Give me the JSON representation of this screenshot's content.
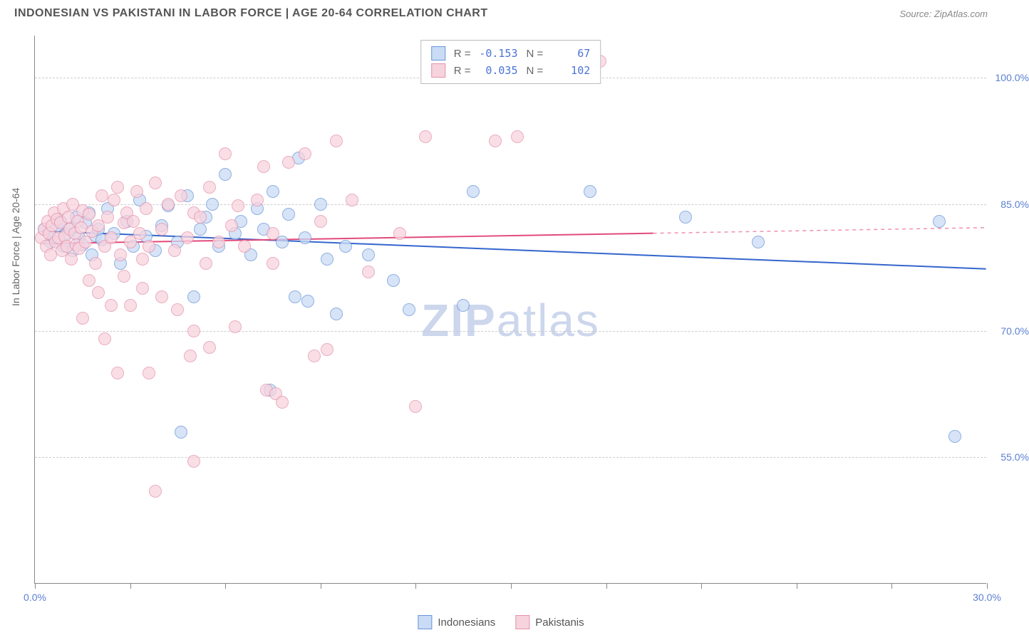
{
  "header": {
    "title": "INDONESIAN VS PAKISTANI IN LABOR FORCE | AGE 20-64 CORRELATION CHART",
    "source": "Source: ZipAtlas.com"
  },
  "watermark": {
    "bold": "ZIP",
    "light": "atlas"
  },
  "chart": {
    "type": "scatter",
    "ylabel": "In Labor Force | Age 20-64",
    "xlim": [
      0,
      30
    ],
    "ylim": [
      40,
      105
    ],
    "ytick_values": [
      55.0,
      70.0,
      85.0,
      100.0
    ],
    "ytick_labels": [
      "55.0%",
      "70.0%",
      "85.0%",
      "100.0%"
    ],
    "xtick_values": [
      0,
      3,
      6,
      9,
      12,
      15,
      18,
      21,
      24,
      27,
      30
    ],
    "xtick_show_labels": {
      "0": "0.0%",
      "30": "30.0%"
    },
    "background_color": "#ffffff",
    "grid_color": "#cccccc",
    "series": [
      {
        "name": "Indonesians",
        "fill_color": "#cadcf5",
        "stroke_color": "#6a95d8",
        "line_color": "#3366cc",
        "r_value": "-0.153",
        "n_value": "67",
        "trend": {
          "x1": 0.2,
          "y1": 81.8,
          "x2": 30,
          "y2": 77.3,
          "solid_until_x": 30
        },
        "points": [
          [
            0.3,
            82
          ],
          [
            0.5,
            80.5
          ],
          [
            0.6,
            81
          ],
          [
            0.7,
            82.5
          ],
          [
            0.8,
            83
          ],
          [
            0.9,
            80
          ],
          [
            1.0,
            81.5
          ],
          [
            1.1,
            82.2
          ],
          [
            1.2,
            79.5
          ],
          [
            1.3,
            83.5
          ],
          [
            1.4,
            81
          ],
          [
            1.5,
            80.2
          ],
          [
            1.6,
            82.8
          ],
          [
            1.7,
            84
          ],
          [
            1.8,
            79
          ],
          [
            1.9,
            81.3
          ],
          [
            2.0,
            82
          ],
          [
            2.1,
            80.8
          ],
          [
            2.3,
            84.5
          ],
          [
            2.5,
            81.5
          ],
          [
            2.7,
            78
          ],
          [
            2.9,
            83
          ],
          [
            3.1,
            80
          ],
          [
            3.3,
            85.5
          ],
          [
            3.5,
            81.2
          ],
          [
            3.8,
            79.5
          ],
          [
            4.0,
            82.5
          ],
          [
            4.2,
            84.8
          ],
          [
            4.5,
            80.5
          ],
          [
            4.8,
            86
          ],
          [
            5.0,
            74
          ],
          [
            5.2,
            82
          ],
          [
            5.4,
            83.5
          ],
          [
            5.6,
            85
          ],
          [
            5.8,
            80
          ],
          [
            6.0,
            88.5
          ],
          [
            6.3,
            81.5
          ],
          [
            6.5,
            83
          ],
          [
            6.8,
            79
          ],
          [
            7.0,
            84.5
          ],
          [
            7.2,
            82
          ],
          [
            7.5,
            86.5
          ],
          [
            7.8,
            80.5
          ],
          [
            8.0,
            83.8
          ],
          [
            8.3,
            90.5
          ],
          [
            8.5,
            81
          ],
          [
            9.0,
            85
          ],
          [
            8.2,
            74
          ],
          [
            8.6,
            73.5
          ],
          [
            9.2,
            78.5
          ],
          [
            9.8,
            80
          ],
          [
            10.5,
            79
          ],
          [
            9.5,
            72
          ],
          [
            7.4,
            63
          ],
          [
            4.6,
            58
          ],
          [
            11.3,
            76
          ],
          [
            11.8,
            72.5
          ],
          [
            13.5,
            73
          ],
          [
            13.8,
            86.5
          ],
          [
            17.5,
            86.5
          ],
          [
            20.5,
            83.5
          ],
          [
            22.8,
            80.5
          ],
          [
            28.5,
            83
          ],
          [
            29.0,
            57.5
          ]
        ]
      },
      {
        "name": "Pakistanis",
        "fill_color": "#f7d3de",
        "stroke_color": "#e593ac",
        "line_color": "#e24a7a",
        "r_value": "0.035",
        "n_value": "102",
        "trend": {
          "x1": 0.2,
          "y1": 80.3,
          "x2": 30,
          "y2": 82.2,
          "solid_until_x": 19.5
        },
        "points": [
          [
            0.2,
            81
          ],
          [
            0.3,
            82
          ],
          [
            0.35,
            80
          ],
          [
            0.4,
            83
          ],
          [
            0.45,
            81.5
          ],
          [
            0.5,
            79
          ],
          [
            0.55,
            82.5
          ],
          [
            0.6,
            84
          ],
          [
            0.65,
            80.5
          ],
          [
            0.7,
            83.2
          ],
          [
            0.75,
            81
          ],
          [
            0.8,
            82.8
          ],
          [
            0.85,
            79.5
          ],
          [
            0.9,
            84.5
          ],
          [
            0.95,
            81.2
          ],
          [
            1.0,
            80
          ],
          [
            1.05,
            83.5
          ],
          [
            1.1,
            82
          ],
          [
            1.15,
            78.5
          ],
          [
            1.2,
            85
          ],
          [
            1.25,
            81.5
          ],
          [
            1.3,
            80.2
          ],
          [
            1.35,
            83
          ],
          [
            1.4,
            79.8
          ],
          [
            1.45,
            82.2
          ],
          [
            1.5,
            84.2
          ],
          [
            1.6,
            80.5
          ],
          [
            1.7,
            83.8
          ],
          [
            1.8,
            81.8
          ],
          [
            1.9,
            78
          ],
          [
            2.0,
            82.5
          ],
          [
            2.1,
            86
          ],
          [
            2.2,
            80
          ],
          [
            2.3,
            83.5
          ],
          [
            2.4,
            81
          ],
          [
            2.5,
            85.5
          ],
          [
            2.6,
            87
          ],
          [
            2.7,
            79
          ],
          [
            2.8,
            82.8
          ],
          [
            2.9,
            84
          ],
          [
            3.0,
            80.5
          ],
          [
            3.1,
            83
          ],
          [
            3.2,
            86.5
          ],
          [
            3.3,
            81.5
          ],
          [
            3.4,
            78.5
          ],
          [
            3.5,
            84.5
          ],
          [
            3.6,
            80
          ],
          [
            3.8,
            87.5
          ],
          [
            4.0,
            82
          ],
          [
            4.2,
            85
          ],
          [
            4.4,
            79.5
          ],
          [
            4.6,
            86
          ],
          [
            4.8,
            81
          ],
          [
            5.0,
            84
          ],
          [
            5.2,
            83.5
          ],
          [
            5.4,
            78
          ],
          [
            5.5,
            87
          ],
          [
            5.8,
            80.5
          ],
          [
            6.0,
            91
          ],
          [
            6.2,
            82.5
          ],
          [
            6.4,
            84.8
          ],
          [
            6.6,
            80
          ],
          [
            7.0,
            85.5
          ],
          [
            7.2,
            89.5
          ],
          [
            7.5,
            81.5
          ],
          [
            8.0,
            90
          ],
          [
            8.5,
            91
          ],
          [
            9.0,
            83
          ],
          [
            9.5,
            92.5
          ],
          [
            10.0,
            85.5
          ],
          [
            10.5,
            77
          ],
          [
            1.7,
            76
          ],
          [
            2.0,
            74.5
          ],
          [
            2.4,
            73
          ],
          [
            2.8,
            76.5
          ],
          [
            3.0,
            73
          ],
          [
            3.4,
            75
          ],
          [
            4.0,
            74
          ],
          [
            4.5,
            72.5
          ],
          [
            5.0,
            70
          ],
          [
            5.5,
            68
          ],
          [
            6.3,
            70.5
          ],
          [
            7.5,
            78
          ],
          [
            1.5,
            71.5
          ],
          [
            2.2,
            69
          ],
          [
            3.6,
            65
          ],
          [
            4.9,
            67
          ],
          [
            7.3,
            63
          ],
          [
            7.6,
            62.5
          ],
          [
            7.8,
            61.5
          ],
          [
            8.8,
            67
          ],
          [
            9.2,
            67.8
          ],
          [
            5.0,
            54.5
          ],
          [
            3.8,
            51
          ],
          [
            2.6,
            65
          ],
          [
            12.0,
            61
          ],
          [
            12.3,
            93
          ],
          [
            14.5,
            92.5
          ],
          [
            17.8,
            102
          ],
          [
            11.5,
            81.5
          ],
          [
            15.2,
            93
          ]
        ]
      }
    ]
  },
  "legend_top": {
    "r_label": "R =",
    "n_label": "N ="
  },
  "legend_bottom": {
    "items": [
      "Indonesians",
      "Pakistanis"
    ]
  }
}
